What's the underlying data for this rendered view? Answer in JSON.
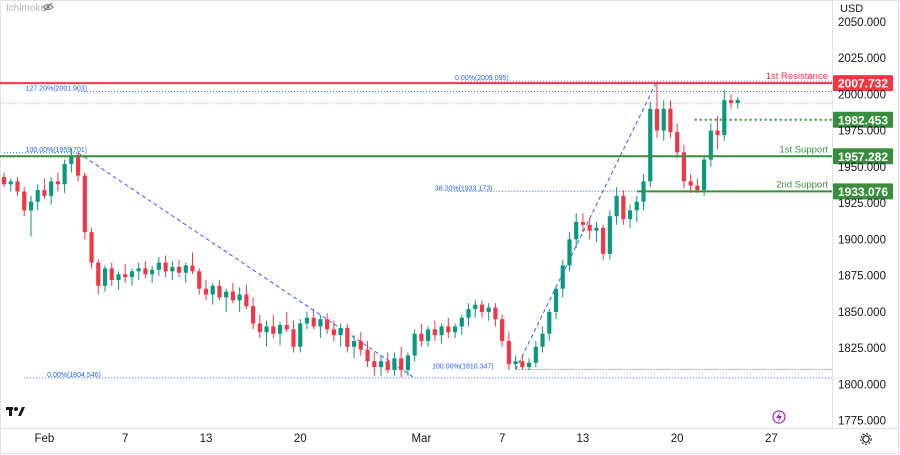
{
  "indicator": {
    "name": "Ichimoku",
    "eye_icon": "eye-off-icon"
  },
  "brand": {
    "logo_icon": "tradingview-logo-icon"
  },
  "bottom": {
    "lightning_icon": "lightning-icon",
    "settings_icon": "gear-icon"
  },
  "colors": {
    "up": "#089981",
    "down": "#f23645",
    "resistance": "#f23645",
    "support": "#388e3c",
    "fib": "#2962ff",
    "axis_text": "#131722"
  },
  "chart_data": {
    "type": "candlestick",
    "currency": "USD",
    "x_ticks": [
      {
        "label": "Feb",
        "day": 1
      },
      {
        "label": "7",
        "day": 7
      },
      {
        "label": "13",
        "day": 13
      },
      {
        "label": "20",
        "day": 20
      },
      {
        "label": "Mar",
        "day": 29
      },
      {
        "label": "7",
        "day": 35
      },
      {
        "label": "13",
        "day": 41
      },
      {
        "label": "20",
        "day": 48
      },
      {
        "label": "27",
        "day": 55
      }
    ],
    "y_ticks": [
      1775,
      1800,
      1825,
      1850,
      1875,
      1900,
      1925,
      1950,
      1975,
      2000,
      2025,
      2050
    ],
    "y_tick_labels": [
      "1775.000",
      "1800.000",
      "1825.000",
      "1850.000",
      "1875.000",
      "1900.000",
      "1925.000",
      "1950.000",
      "1975.000",
      "2000.000",
      "2025.000",
      "2050.000"
    ],
    "ylim": [
      1770,
      2065
    ],
    "xlim": [
      -2.3,
      59.5
    ],
    "horizontal_levels": [
      {
        "name": "1st Resistance",
        "value": 2007.732,
        "label": "2007.732",
        "style": "resistance"
      },
      {
        "name": "",
        "value": 1982.453,
        "label": "1982.453",
        "style": "pivot"
      },
      {
        "name": "1st Support",
        "value": 1957.282,
        "label": "1957.282",
        "style": "support"
      },
      {
        "name": "2nd Support",
        "value": 1933.076,
        "label": "1933.076",
        "style": "support"
      }
    ],
    "fib_labels": [
      {
        "text": "0.00%(2009.095)",
        "value": 2009.095
      },
      {
        "text": "127.20%(2001.903)",
        "value": 2001.903
      },
      {
        "text": "100.00%(1959.701)",
        "value": 1959.701
      },
      {
        "text": "38.20%(1933.173)",
        "value": 1933.173
      },
      {
        "text": "100.00%(1810.347)",
        "value": 1810.347
      },
      {
        "text": "0.00%(1804.546)",
        "value": 1804.546
      }
    ],
    "candles": [
      [
        -2.0,
        1943,
        1946,
        1936,
        1938
      ],
      [
        -1.5,
        1938,
        1942,
        1933,
        1940
      ],
      [
        -1.0,
        1940,
        1943,
        1930,
        1933
      ],
      [
        -0.5,
        1933,
        1936,
        1916,
        1920
      ],
      [
        0.0,
        1920,
        1930,
        1902,
        1926
      ],
      [
        0.5,
        1926,
        1938,
        1920,
        1934
      ],
      [
        1.0,
        1934,
        1942,
        1928,
        1930
      ],
      [
        1.5,
        1930,
        1943,
        1924,
        1940
      ],
      [
        2.0,
        1940,
        1946,
        1933,
        1938
      ],
      [
        2.5,
        1938,
        1955,
        1932,
        1952
      ],
      [
        3.0,
        1952,
        1963,
        1946,
        1958
      ],
      [
        3.5,
        1958,
        1960,
        1940,
        1944
      ],
      [
        4.0,
        1944,
        1946,
        1900,
        1905
      ],
      [
        4.5,
        1905,
        1908,
        1880,
        1884
      ],
      [
        5.0,
        1884,
        1886,
        1862,
        1868
      ],
      [
        5.5,
        1868,
        1882,
        1864,
        1880
      ],
      [
        6.0,
        1880,
        1884,
        1868,
        1872
      ],
      [
        6.5,
        1872,
        1878,
        1865,
        1876
      ],
      [
        7.0,
        1876,
        1883,
        1870,
        1874
      ],
      [
        7.5,
        1874,
        1880,
        1868,
        1878
      ],
      [
        8.0,
        1878,
        1884,
        1872,
        1880
      ],
      [
        8.5,
        1880,
        1885,
        1873,
        1876
      ],
      [
        9.0,
        1876,
        1882,
        1870,
        1879
      ],
      [
        9.5,
        1879,
        1888,
        1875,
        1884
      ],
      [
        10.0,
        1884,
        1889,
        1874,
        1878
      ],
      [
        10.5,
        1878,
        1885,
        1872,
        1881
      ],
      [
        11.0,
        1881,
        1886,
        1874,
        1877
      ],
      [
        11.5,
        1877,
        1884,
        1870,
        1882
      ],
      [
        12.0,
        1882,
        1891,
        1876,
        1878
      ],
      [
        12.5,
        1878,
        1880,
        1862,
        1866
      ],
      [
        13.0,
        1866,
        1872,
        1858,
        1862
      ],
      [
        13.5,
        1862,
        1870,
        1855,
        1868
      ],
      [
        14.0,
        1868,
        1872,
        1858,
        1860
      ],
      [
        14.5,
        1860,
        1866,
        1850,
        1864
      ],
      [
        15.0,
        1864,
        1870,
        1856,
        1858
      ],
      [
        15.5,
        1858,
        1867,
        1850,
        1862
      ],
      [
        16.0,
        1862,
        1869,
        1852,
        1854
      ],
      [
        16.5,
        1854,
        1860,
        1838,
        1842
      ],
      [
        17.0,
        1842,
        1848,
        1832,
        1836
      ],
      [
        17.5,
        1836,
        1844,
        1826,
        1840
      ],
      [
        18.0,
        1840,
        1848,
        1832,
        1835
      ],
      [
        18.5,
        1835,
        1843,
        1827,
        1841
      ],
      [
        19.0,
        1841,
        1850,
        1836,
        1838
      ],
      [
        19.5,
        1838,
        1844,
        1822,
        1826
      ],
      [
        20.0,
        1826,
        1845,
        1822,
        1842
      ],
      [
        20.5,
        1842,
        1850,
        1838,
        1846
      ],
      [
        21.0,
        1846,
        1852,
        1838,
        1840
      ],
      [
        21.5,
        1840,
        1848,
        1832,
        1845
      ],
      [
        22.0,
        1845,
        1849,
        1835,
        1838
      ],
      [
        22.5,
        1838,
        1844,
        1830,
        1834
      ],
      [
        23.0,
        1834,
        1842,
        1826,
        1839
      ],
      [
        23.5,
        1839,
        1842,
        1822,
        1826
      ],
      [
        24.0,
        1826,
        1834,
        1818,
        1830
      ],
      [
        24.5,
        1830,
        1836,
        1820,
        1824
      ],
      [
        25.0,
        1824,
        1830,
        1812,
        1816
      ],
      [
        25.5,
        1816,
        1822,
        1806,
        1812
      ],
      [
        26.0,
        1812,
        1820,
        1806,
        1816
      ],
      [
        26.5,
        1816,
        1822,
        1808,
        1810
      ],
      [
        27.0,
        1810,
        1822,
        1806,
        1818
      ],
      [
        27.5,
        1818,
        1826,
        1805,
        1810
      ],
      [
        28.0,
        1810,
        1822,
        1806,
        1820
      ],
      [
        28.5,
        1820,
        1838,
        1816,
        1835
      ],
      [
        29.0,
        1835,
        1842,
        1826,
        1830
      ],
      [
        29.5,
        1830,
        1840,
        1826,
        1838
      ],
      [
        30.0,
        1838,
        1844,
        1830,
        1834
      ],
      [
        30.5,
        1834,
        1842,
        1828,
        1840
      ],
      [
        31.0,
        1840,
        1846,
        1832,
        1836
      ],
      [
        31.5,
        1836,
        1842,
        1832,
        1840
      ],
      [
        32.0,
        1840,
        1848,
        1834,
        1846
      ],
      [
        32.5,
        1846,
        1856,
        1840,
        1852
      ],
      [
        33.0,
        1852,
        1858,
        1846,
        1855
      ],
      [
        33.5,
        1855,
        1858,
        1846,
        1850
      ],
      [
        34.0,
        1850,
        1856,
        1844,
        1853
      ],
      [
        34.5,
        1853,
        1856,
        1840,
        1845
      ],
      [
        35.0,
        1845,
        1848,
        1826,
        1830
      ],
      [
        35.5,
        1830,
        1836,
        1810,
        1814
      ],
      [
        36.0,
        1814,
        1820,
        1810,
        1816
      ],
      [
        36.5,
        1816,
        1820,
        1810,
        1812
      ],
      [
        37.0,
        1812,
        1818,
        1810,
        1815
      ],
      [
        37.5,
        1815,
        1830,
        1812,
        1826
      ],
      [
        38.0,
        1826,
        1840,
        1822,
        1835
      ],
      [
        38.5,
        1835,
        1852,
        1830,
        1850
      ],
      [
        39.0,
        1850,
        1868,
        1845,
        1866
      ],
      [
        39.5,
        1866,
        1886,
        1860,
        1882
      ],
      [
        40.0,
        1882,
        1905,
        1878,
        1900
      ],
      [
        40.5,
        1900,
        1918,
        1894,
        1912
      ],
      [
        41.0,
        1912,
        1918,
        1905,
        1910
      ],
      [
        41.5,
        1910,
        1915,
        1900,
        1906
      ],
      [
        42.0,
        1906,
        1912,
        1898,
        1908
      ],
      [
        42.5,
        1908,
        1910,
        1886,
        1890
      ],
      [
        43.0,
        1890,
        1920,
        1886,
        1916
      ],
      [
        43.5,
        1916,
        1936,
        1910,
        1930
      ],
      [
        44.0,
        1930,
        1934,
        1910,
        1914
      ],
      [
        44.5,
        1914,
        1924,
        1908,
        1920
      ],
      [
        45.0,
        1920,
        1930,
        1912,
        1926
      ],
      [
        45.5,
        1926,
        1945,
        1920,
        1940
      ],
      [
        46.0,
        1940,
        1995,
        1936,
        1990
      ],
      [
        46.5,
        1990,
        2009,
        1970,
        1975
      ],
      [
        47.0,
        1975,
        1996,
        1968,
        1990
      ],
      [
        47.5,
        1990,
        1996,
        1970,
        1974
      ],
      [
        48.0,
        1974,
        1980,
        1956,
        1960
      ],
      [
        48.5,
        1960,
        1965,
        1935,
        1940
      ],
      [
        49.0,
        1940,
        1945,
        1932,
        1937
      ],
      [
        49.5,
        1937,
        1942,
        1932,
        1934
      ],
      [
        50.0,
        1934,
        1958,
        1930,
        1955
      ],
      [
        50.5,
        1955,
        1980,
        1950,
        1975
      ],
      [
        51.0,
        1975,
        1985,
        1962,
        1972
      ],
      [
        51.5,
        1972,
        2003,
        1968,
        1996
      ],
      [
        52.0,
        1996,
        2000,
        1990,
        1994
      ],
      [
        52.5,
        1994,
        1998,
        1990,
        1996
      ]
    ]
  }
}
